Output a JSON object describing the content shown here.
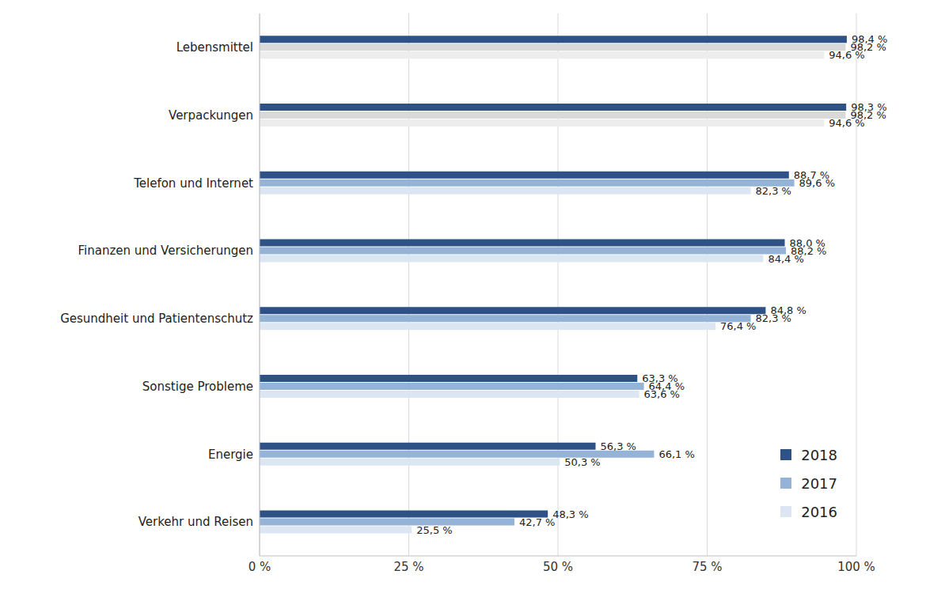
{
  "chart_data": {
    "type": "bar",
    "orientation": "horizontal",
    "categories": [
      "Lebensmittel",
      "Verpackungen",
      "Telefon und Internet",
      "Finanzen und Versicherungen",
      "Gesundheit und Patientenschutz",
      "Sonstige Probleme",
      "Energie",
      "Verkehr und Reisen"
    ],
    "series": [
      {
        "name": "2018",
        "color": "#2E5186",
        "values": [
          98.4,
          98.3,
          88.7,
          88.0,
          84.8,
          63.3,
          56.3,
          48.3
        ],
        "value_labels": [
          "98,4 %",
          "98,3 %",
          "88,7 %",
          "88,0 %",
          "84,8 %",
          "63,3 %",
          "56,3 %",
          "48,3 %"
        ]
      },
      {
        "name": "2017",
        "color": "#95B3D7",
        "colors": [
          "#D9D9D9",
          "#D9D9D9",
          "#95B3D7",
          "#95B3D7",
          "#95B3D7",
          "#95B3D7",
          "#95B3D7",
          "#95B3D7"
        ],
        "values": [
          98.2,
          98.2,
          89.6,
          88.2,
          82.3,
          64.4,
          66.1,
          42.7
        ],
        "value_labels": [
          "98,2 %",
          "98,2 %",
          "89,6 %",
          "88,2 %",
          "82,3 %",
          "64,4 %",
          "66,1 %",
          "42,7 %"
        ]
      },
      {
        "name": "2016",
        "color": "#DCE6F2",
        "colors": [
          "#EDEDED",
          "#EDEDED",
          "#DCE6F2",
          "#DCE6F2",
          "#DCE6F2",
          "#DCE6F2",
          "#DCE6F2",
          "#DCE6F2"
        ],
        "values": [
          94.6,
          94.6,
          82.3,
          84.4,
          76.4,
          63.6,
          50.3,
          25.5
        ],
        "value_labels": [
          "94,6 %",
          "94,6 %",
          "82,3 %",
          "84,4 %",
          "76,4 %",
          "63,6 %",
          "50,3 %",
          "25,5 %"
        ]
      }
    ],
    "xlim": [
      0,
      100
    ],
    "xticks": [
      {
        "value": 0,
        "label": "0 %"
      },
      {
        "value": 25,
        "label": "25 %"
      },
      {
        "value": 50,
        "label": "50 %"
      },
      {
        "value": 75,
        "label": "75 %"
      },
      {
        "value": 100,
        "label": "100 %"
      }
    ],
    "grid": true,
    "data_labels": true,
    "legend": "lower right"
  }
}
